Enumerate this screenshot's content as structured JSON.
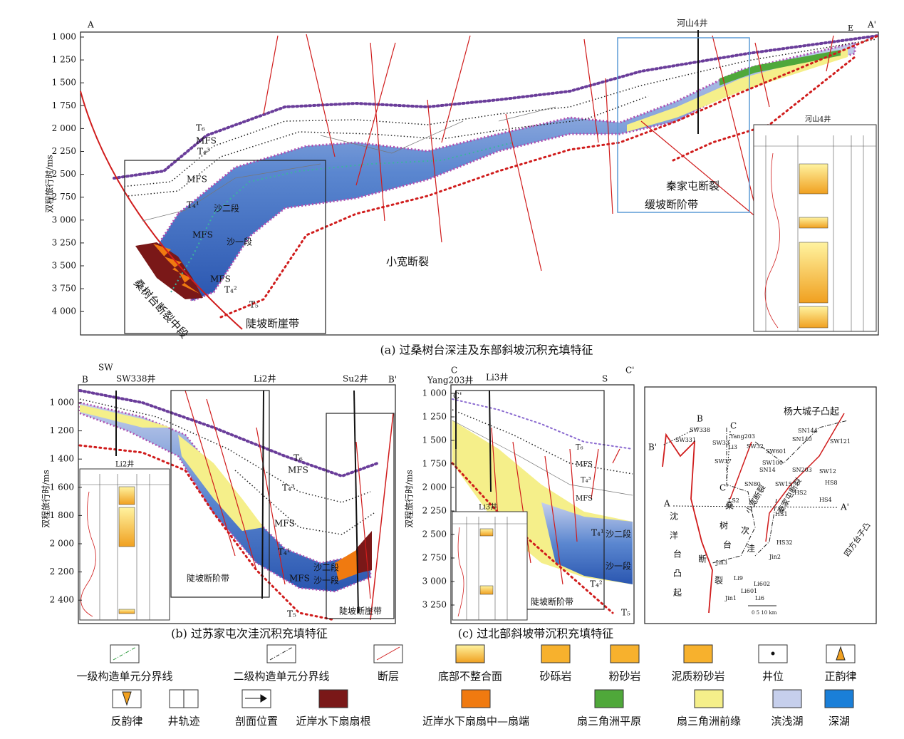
{
  "panel_a": {
    "caption": "(a) 过桑树台深洼及东部斜坡沉积充填特征",
    "y_label": "双程旅行时/ms",
    "yticks": [
      "1 000",
      "1 250",
      "1 500",
      "1 750",
      "2 000",
      "2 250",
      "2 500",
      "2 750",
      "3 000",
      "3 250",
      "3 500",
      "3 750",
      "4 000"
    ],
    "labels": [
      "A",
      "A'",
      "E",
      "河山4井",
      "T₆",
      "MFS",
      "T₄³",
      "MFS",
      "T₄¹",
      "沙二段",
      "MFS",
      "沙一段",
      "MFS",
      "T₄²",
      "T₅",
      "桑树台断裂中段",
      "陡坡断崖带",
      "小宽断裂",
      "秦家屯断裂",
      "缓坡断阶带",
      "河山4井"
    ]
  },
  "panel_b": {
    "caption": "(b) 过苏家屯次洼沉积充填特征",
    "y_label": "双程旅行时/ms",
    "yticks": [
      "1 000",
      "1 200",
      "1 400",
      "1 600",
      "1 800",
      "2 000",
      "2 200",
      "2 400"
    ],
    "labels": [
      "B",
      "B'",
      "SW",
      "SW338井",
      "Li2井",
      "Su2井",
      "T₆",
      "MFS",
      "T₄³",
      "MFS",
      "T₄¹",
      "MFS",
      "沙二段",
      "沙一段",
      "T₅",
      "陡坡断阶带",
      "陡坡断崖带",
      "Li2井"
    ]
  },
  "panel_c": {
    "caption": "(c) 过北部斜坡带沉积充填特征",
    "y_label": "双程旅行时/ms",
    "yticks": [
      "1 000",
      "1 250",
      "1 500",
      "1 750",
      "2 000",
      "2 250",
      "2 500",
      "2 750",
      "3 000",
      "3 250"
    ],
    "labels": [
      "C",
      "C'",
      "C'",
      "Yang203井",
      "Li3井",
      "S",
      "T₆",
      "MFS",
      "T₄³",
      "MFS",
      "T₄¹",
      "沙二段",
      "沙一段",
      "T₄²",
      "T₅",
      "陡坡断阶带",
      "Li3井"
    ]
  },
  "map": {
    "labels": [
      "杨大城子凸起",
      "B",
      "B'",
      "C",
      "C'",
      "A",
      "A'",
      "SW338",
      "SW331",
      "SW33",
      "Yang203",
      "Li3",
      "SW32",
      "SN144",
      "SN140",
      "SW121",
      "SW601",
      "SW100",
      "SN14",
      "SW37",
      "SN80",
      "SW15",
      "SN203",
      "SW12",
      "HS2",
      "HS8",
      "HS4",
      "LS2",
      "HS1",
      "HS32",
      "Jin3",
      "Jin2",
      "Li9",
      "Li602",
      "Li601",
      "Li6",
      "Jin1",
      "沈",
      "洋",
      "台",
      "凸",
      "起",
      "桑",
      "树",
      "台",
      "次",
      "洼",
      "断",
      "裂",
      "小宽断裂",
      "秦家屯断裂",
      "四方台子凸",
      "0  5  10 km"
    ]
  },
  "legend": [
    "一级构造单元分界线",
    "二级构造单元分界线",
    "断层",
    "底部不整合面",
    "砂砾岩",
    "粉砂岩",
    "泥质粉砂岩",
    "井位",
    "正韵律",
    "反韵律",
    "井轨迹",
    "剖面位置",
    "近岸水下扇扇根",
    "近岸水下扇扇中—扇端",
    "扇三角洲平原",
    "扇三角洲前缘",
    "滨浅湖",
    "深湖"
  ]
}
